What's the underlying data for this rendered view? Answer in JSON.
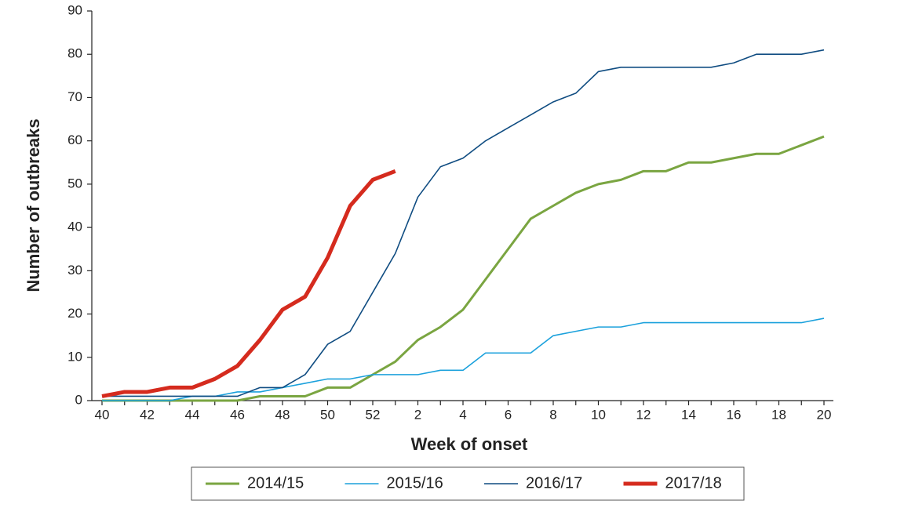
{
  "chart_data": {
    "type": "line",
    "x_label": "Week of onset",
    "y_label": "Number of outbreaks",
    "categories": [
      40,
      null,
      42,
      null,
      44,
      null,
      46,
      null,
      48,
      null,
      50,
      null,
      52,
      null,
      2,
      null,
      4,
      null,
      6,
      null,
      8,
      null,
      10,
      null,
      12,
      null,
      14,
      null,
      16,
      null,
      18,
      null,
      20
    ],
    "ylim": [
      0,
      90
    ],
    "yticks": [
      0,
      10,
      20,
      30,
      40,
      50,
      60,
      70,
      80,
      90
    ],
    "legend": "bottom",
    "series": [
      {
        "name": "2014/15",
        "color": "#7aa541",
        "values": [
          0,
          0,
          0,
          0,
          0,
          0,
          0,
          1,
          1,
          1,
          3,
          3,
          6,
          9,
          14,
          17,
          21,
          28,
          35,
          42,
          45,
          48,
          50,
          51,
          53,
          53,
          55,
          55,
          56,
          57,
          57,
          59,
          61
        ]
      },
      {
        "name": "2015/16",
        "color": "#1ba1dc",
        "values": [
          0,
          0,
          0,
          0,
          1,
          1,
          2,
          2,
          3,
          4,
          5,
          5,
          6,
          6,
          6,
          7,
          7,
          11,
          11,
          11,
          15,
          16,
          17,
          17,
          18,
          18,
          18,
          18,
          18,
          18,
          18,
          18,
          19
        ]
      },
      {
        "name": "2016/17",
        "color": "#0f4c81",
        "values": [
          1,
          1,
          1,
          1,
          1,
          1,
          1,
          3,
          3,
          6,
          13,
          16,
          25,
          34,
          47,
          54,
          56,
          60,
          63,
          66,
          69,
          71,
          76,
          77,
          77,
          77,
          77,
          77,
          78,
          80,
          80,
          80,
          81
        ]
      },
      {
        "name": "2017/18",
        "color": "#d52b1e",
        "values": [
          1,
          2,
          2,
          3,
          3,
          5,
          8,
          14,
          21,
          24,
          33,
          45,
          51,
          53,
          null,
          null,
          null,
          null,
          null,
          null,
          null,
          null,
          null,
          null,
          null,
          null,
          null,
          null,
          null,
          null,
          null,
          null,
          null
        ]
      }
    ]
  }
}
